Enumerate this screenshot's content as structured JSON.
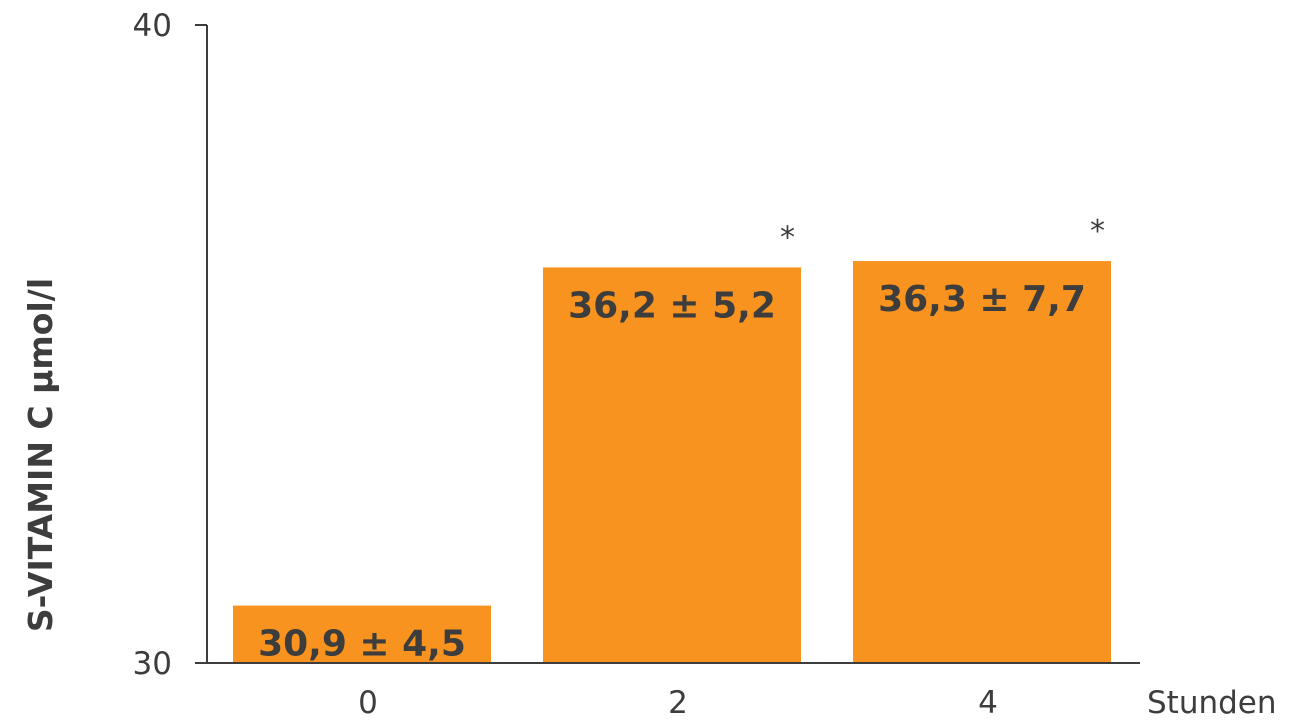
{
  "chart_data": {
    "type": "bar",
    "categories": [
      "0",
      "2",
      "4"
    ],
    "values": [
      30.9,
      36.2,
      36.3
    ],
    "data_labels": [
      "30,9 ± 4,5",
      "36,2 ± 5,2",
      "36,3 ± 7,7"
    ],
    "significance_marks": [
      "",
      "*",
      "*"
    ],
    "ylabel": "S-VITAMIN C µmol/l",
    "xlabel": "Stunden",
    "ylim": [
      30,
      40
    ],
    "y_ticks": [
      30,
      40
    ],
    "y_tick_labels": [
      "30",
      "40"
    ],
    "grid": false,
    "bar_color": "#f7931e",
    "axis_color": "#3d3d3d",
    "text_color": "#3d3d3d"
  }
}
